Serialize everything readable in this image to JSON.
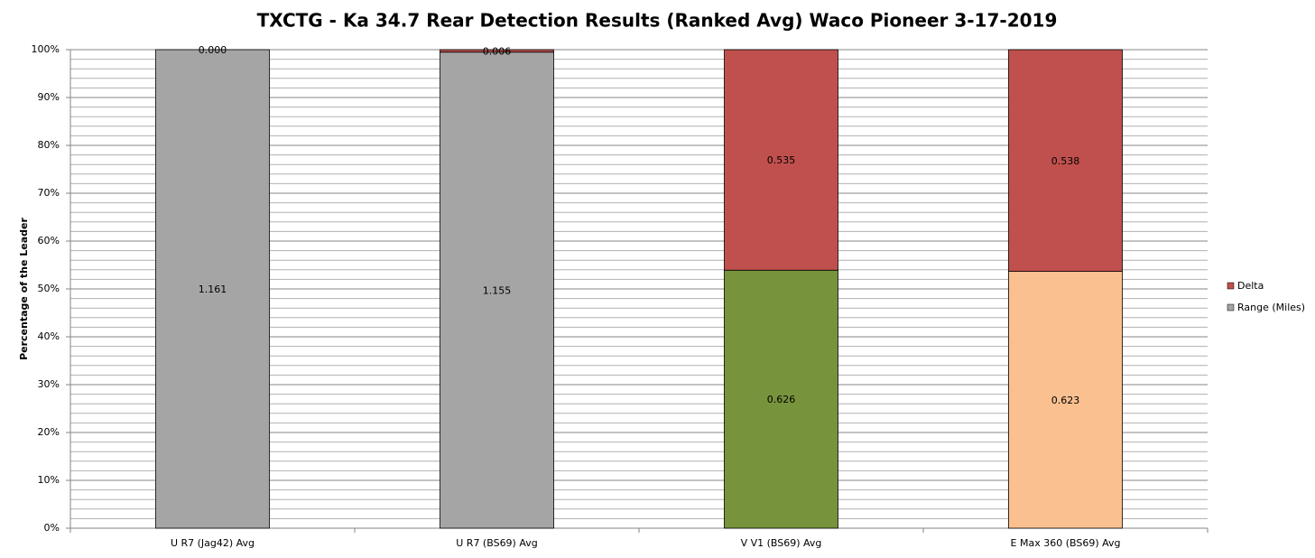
{
  "chart_data": {
    "type": "bar",
    "stacking": "percent",
    "title": "TXCTG - Ka 34.7 Rear Detection Results (Ranked Avg) Waco Pioneer 3-17-2019",
    "y_label": "Percentage of the Leader",
    "categories": [
      "U R7 (Jag42) Avg",
      "U R7 (BS69) Avg",
      "V V1 (BS69) Avg",
      "E Max 360 (BS69) Avg"
    ],
    "series": [
      {
        "name": "Range (Miles)",
        "color": "#a5a5a5",
        "point_colors": [
          "#a5a5a5",
          "#a5a5a5",
          "#77933c",
          "#fac090"
        ],
        "values": [
          1.161,
          1.155,
          0.626,
          0.623
        ],
        "value_labels": [
          "1.161",
          "1.155",
          "0.626",
          "0.623"
        ]
      },
      {
        "name": "Delta",
        "color": "#c0504d",
        "values": [
          0.0,
          0.006,
          0.535,
          0.538
        ],
        "value_labels": [
          "0.000",
          "0.006",
          "0.535",
          "0.538"
        ]
      }
    ],
    "ylim": [
      0,
      100
    ],
    "yticks": [
      {
        "value": 0,
        "label": "0%"
      },
      {
        "value": 10,
        "label": "10%"
      },
      {
        "value": 20,
        "label": "20%"
      },
      {
        "value": 30,
        "label": "30%"
      },
      {
        "value": 40,
        "label": "40%"
      },
      {
        "value": 50,
        "label": "50%"
      },
      {
        "value": 60,
        "label": "60%"
      },
      {
        "value": 70,
        "label": "70%"
      },
      {
        "value": 80,
        "label": "80%"
      },
      {
        "value": 90,
        "label": "90%"
      },
      {
        "value": 100,
        "label": "100%"
      }
    ],
    "minor_grid_step": 2,
    "grid": true,
    "legend": "right"
  }
}
